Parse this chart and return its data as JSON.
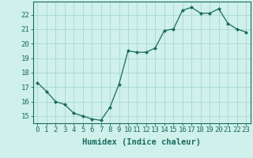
{
  "x": [
    0,
    1,
    2,
    3,
    4,
    5,
    6,
    7,
    8,
    9,
    10,
    11,
    12,
    13,
    14,
    15,
    16,
    17,
    18,
    19,
    20,
    21,
    22,
    23
  ],
  "y": [
    17.3,
    16.7,
    16.0,
    15.8,
    15.2,
    15.0,
    14.8,
    14.7,
    15.6,
    17.2,
    19.5,
    19.4,
    19.4,
    19.7,
    20.9,
    21.0,
    22.3,
    22.5,
    22.1,
    22.1,
    22.4,
    21.4,
    21.0,
    20.8
  ],
  "line_color": "#1a6b5e",
  "marker": "D",
  "marker_size": 2.0,
  "bg_color": "#cff0eb",
  "grid_color": "#a8d8d2",
  "xlabel": "Humidex (Indice chaleur)",
  "ylabel_ticks": [
    15,
    16,
    17,
    18,
    19,
    20,
    21,
    22
  ],
  "xlim": [
    -0.5,
    23.5
  ],
  "ylim": [
    14.5,
    22.9
  ],
  "tick_label_color": "#1a6b5e",
  "axis_color": "#1a6b5e",
  "font_size": 6.5,
  "xlabel_font_size": 7.5
}
